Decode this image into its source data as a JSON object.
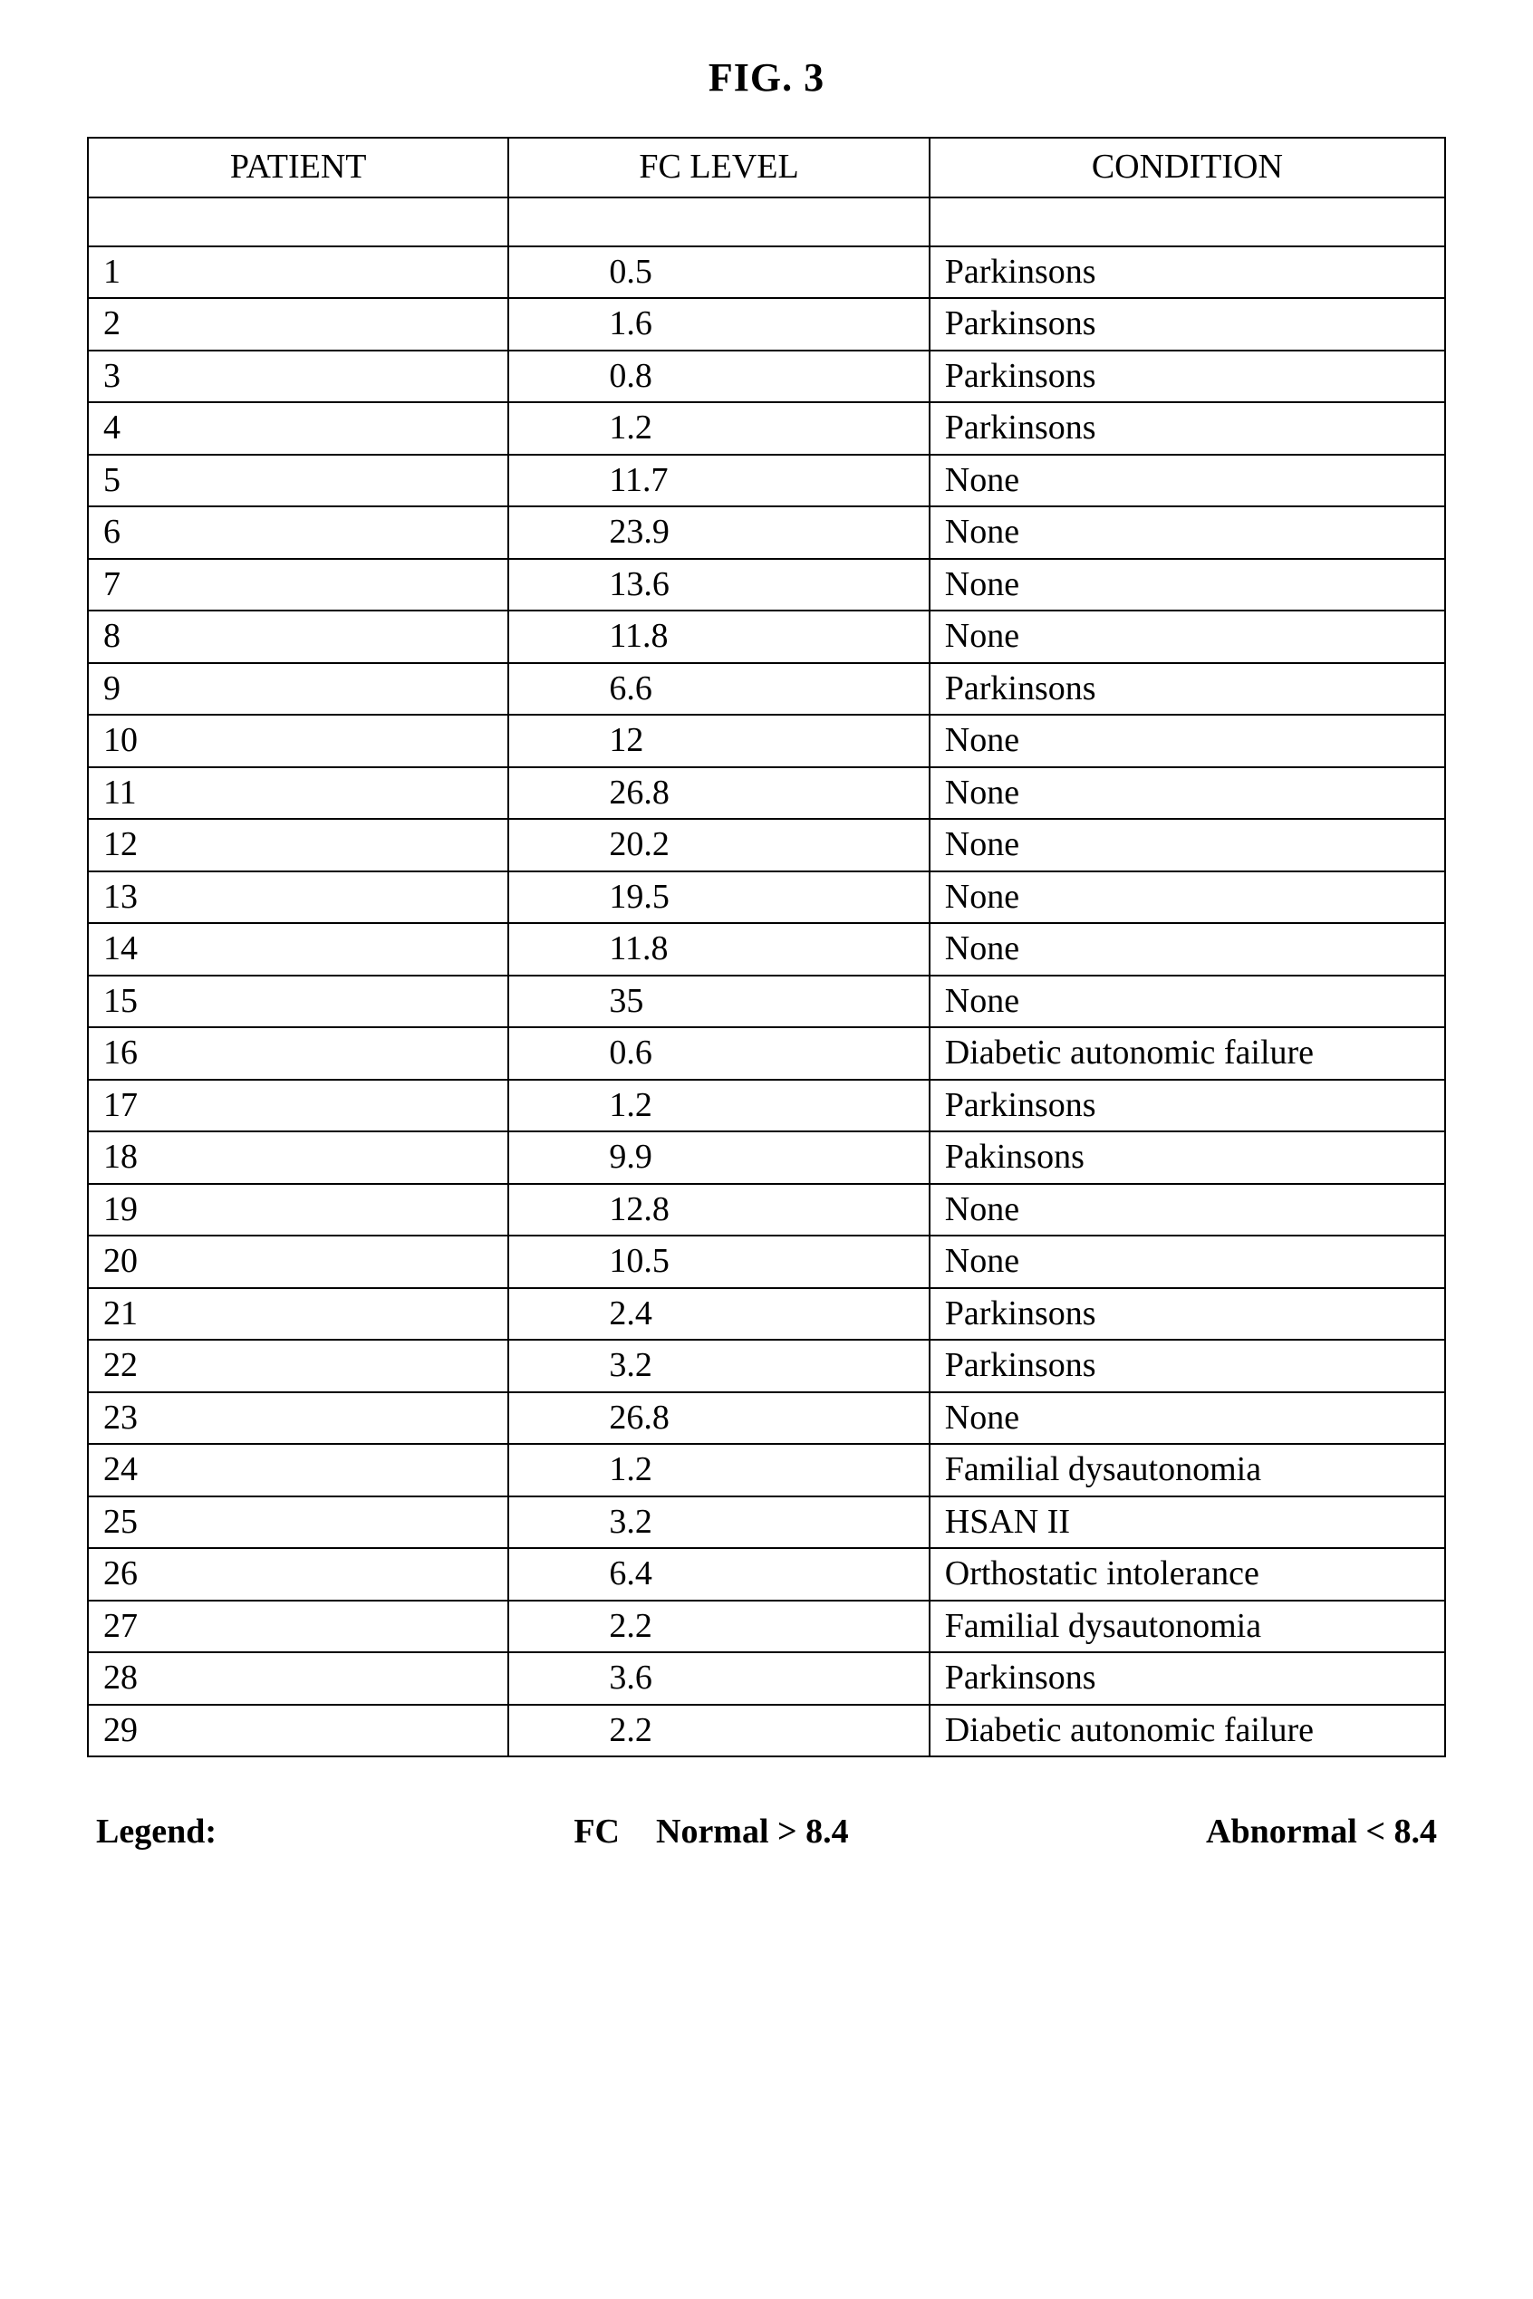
{
  "figure_title": "FIG. 3",
  "columns": [
    "PATIENT",
    "FC LEVEL",
    "CONDITION"
  ],
  "rows": [
    {
      "patient": "1",
      "fc": "0.5",
      "condition": "Parkinsons"
    },
    {
      "patient": "2",
      "fc": "1.6",
      "condition": "Parkinsons"
    },
    {
      "patient": "3",
      "fc": "0.8",
      "condition": "Parkinsons"
    },
    {
      "patient": "4",
      "fc": "1.2",
      "condition": "Parkinsons"
    },
    {
      "patient": "5",
      "fc": "11.7",
      "condition": "None"
    },
    {
      "patient": "6",
      "fc": "23.9",
      "condition": "None"
    },
    {
      "patient": "7",
      "fc": "13.6",
      "condition": "None"
    },
    {
      "patient": "8",
      "fc": "11.8",
      "condition": "None"
    },
    {
      "patient": "9",
      "fc": "6.6",
      "condition": "Parkinsons"
    },
    {
      "patient": "10",
      "fc": "12",
      "condition": "None"
    },
    {
      "patient": "11",
      "fc": "26.8",
      "condition": "None"
    },
    {
      "patient": "12",
      "fc": "20.2",
      "condition": "None"
    },
    {
      "patient": "13",
      "fc": "19.5",
      "condition": "None"
    },
    {
      "patient": "14",
      "fc": "11.8",
      "condition": "None"
    },
    {
      "patient": "15",
      "fc": "35",
      "condition": "None"
    },
    {
      "patient": "16",
      "fc": "0.6",
      "condition": "Diabetic autonomic failure"
    },
    {
      "patient": "17",
      "fc": "1.2",
      "condition": "Parkinsons"
    },
    {
      "patient": "18",
      "fc": "9.9",
      "condition": "Pakinsons"
    },
    {
      "patient": "19",
      "fc": "12.8",
      "condition": "None"
    },
    {
      "patient": "20",
      "fc": "10.5",
      "condition": "None"
    },
    {
      "patient": "21",
      "fc": "2.4",
      "condition": "Parkinsons"
    },
    {
      "patient": "22",
      "fc": "3.2",
      "condition": "Parkinsons"
    },
    {
      "patient": "23",
      "fc": "26.8",
      "condition": "None"
    },
    {
      "patient": "24",
      "fc": "1.2",
      "condition": "Familial dysautonomia"
    },
    {
      "patient": "25",
      "fc": "3.2",
      "condition": "HSAN II"
    },
    {
      "patient": "26",
      "fc": "6.4",
      "condition": "Orthostatic intolerance"
    },
    {
      "patient": "27",
      "fc": "2.2",
      "condition": "Familial dysautonomia"
    },
    {
      "patient": "28",
      "fc": "3.6",
      "condition": "Parkinsons"
    },
    {
      "patient": "29",
      "fc": "2.2",
      "condition": "Diabetic autonomic failure"
    }
  ],
  "legend": {
    "label": "Legend:",
    "fc": "FC",
    "normal": "Normal  > 8.4",
    "abnormal": "Abnormal < 8.4"
  }
}
